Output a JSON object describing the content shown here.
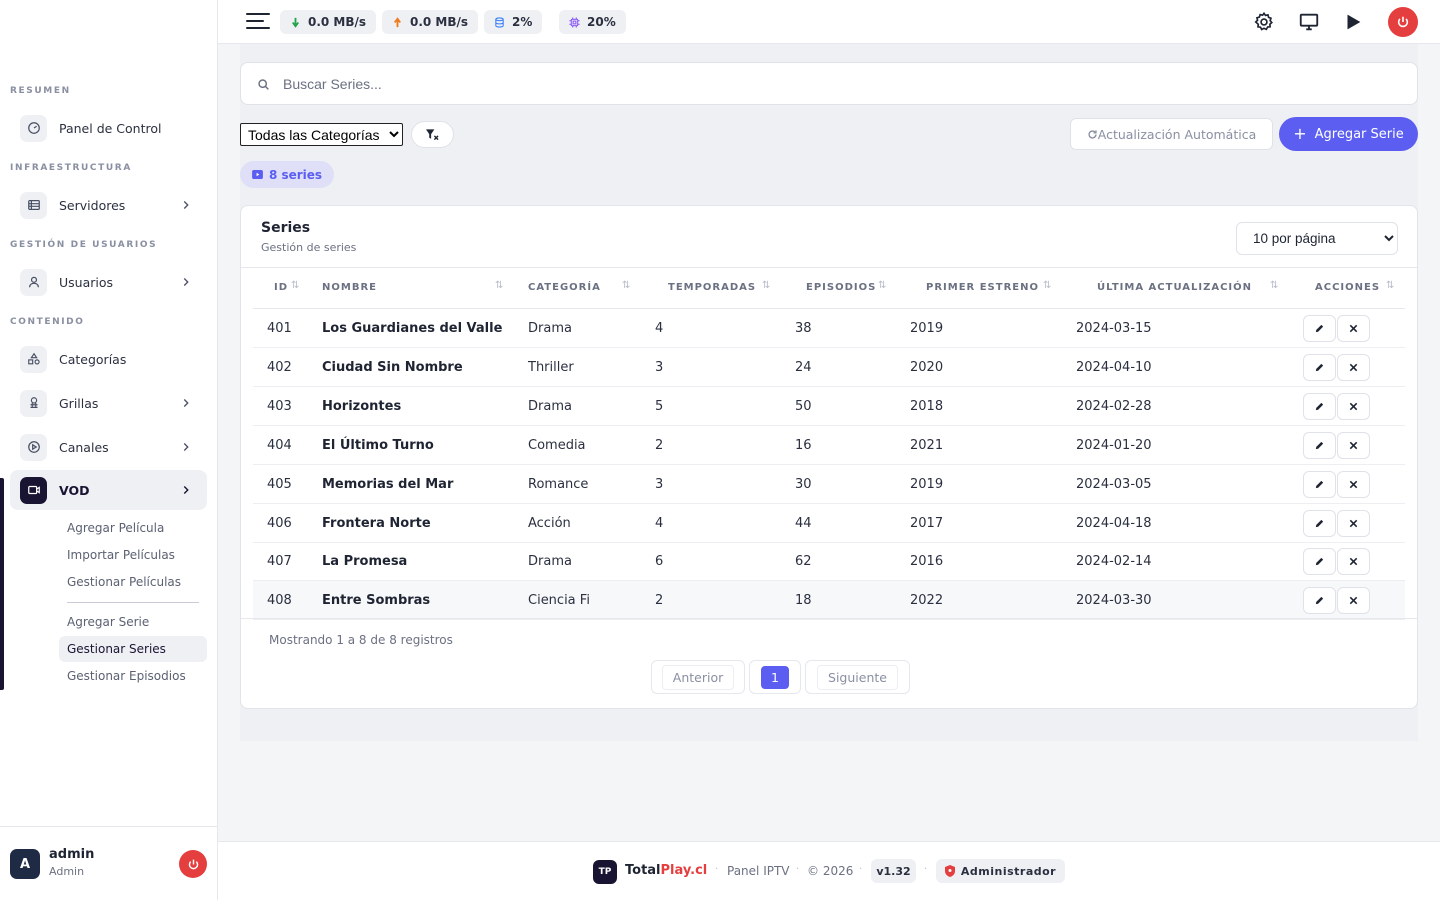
{
  "sidebar": {
    "sections": [
      "RESUMEN",
      "INFRAESTRUCTURA",
      "GESTIÓN DE USUARIOS",
      "CONTENIDO"
    ],
    "items": [
      {
        "label": "Panel de Control",
        "icon": "dashboard-icon"
      },
      {
        "label": "Servidores",
        "icon": "server-icon"
      },
      {
        "label": "Usuarios",
        "icon": "user-icon"
      },
      {
        "label": "Categorías",
        "icon": "shapes-icon"
      },
      {
        "label": "Grillas",
        "icon": "grid-icon"
      },
      {
        "label": "Canales",
        "icon": "play-circle-icon"
      },
      {
        "label": "VOD",
        "icon": "video-icon"
      }
    ],
    "vod_sub": [
      "Agregar Película",
      "Importar Películas",
      "Gestionar Películas",
      "Agregar Serie",
      "Gestionar Series",
      "Gestionar Episodios"
    ],
    "user": {
      "initial": "A",
      "name": "admin",
      "role": "Admin"
    }
  },
  "topbar": {
    "download": "0.0 MB/s",
    "upload": "0.0 MB/s",
    "disk": "2%",
    "cpu": "20%"
  },
  "search": {
    "placeholder": "Buscar Series..."
  },
  "filters": {
    "category_selected": "Todas las Categorías",
    "auto_refresh_label": "Actualización Automática",
    "add_label": "Agregar Serie",
    "count_label": "8 series"
  },
  "card": {
    "title": "Series",
    "subtitle": "Gestión de series",
    "per_page": "10 por página"
  },
  "table": {
    "headers": [
      "ID",
      "NOMBRE",
      "CATEGORÍA",
      "TEMPORADAS",
      "EPISODIOS",
      "PRIMER ESTRENO",
      "ÚLTIMA ACTUALIZACIÓN",
      "ACCIONES"
    ],
    "rows": [
      {
        "id": "401",
        "name": "Los Guardianes del Valle",
        "category": "Drama",
        "seasons": "4",
        "episodes": "38",
        "premiere": "2019",
        "updated": "2024-03-15"
      },
      {
        "id": "402",
        "name": "Ciudad Sin Nombre",
        "category": "Thriller",
        "seasons": "3",
        "episodes": "24",
        "premiere": "2020",
        "updated": "2024-04-10"
      },
      {
        "id": "403",
        "name": "Horizontes",
        "category": "Drama",
        "seasons": "5",
        "episodes": "50",
        "premiere": "2018",
        "updated": "2024-02-28"
      },
      {
        "id": "404",
        "name": "El Último Turno",
        "category": "Comedia",
        "seasons": "2",
        "episodes": "16",
        "premiere": "2021",
        "updated": "2024-01-20"
      },
      {
        "id": "405",
        "name": "Memorias del Mar",
        "category": "Romance",
        "seasons": "3",
        "episodes": "30",
        "premiere": "2019",
        "updated": "2024-03-05"
      },
      {
        "id": "406",
        "name": "Frontera Norte",
        "category": "Acción",
        "seasons": "4",
        "episodes": "44",
        "premiere": "2017",
        "updated": "2024-04-18"
      },
      {
        "id": "407",
        "name": "La Promesa",
        "category": "Drama",
        "seasons": "6",
        "episodes": "62",
        "premiere": "2016",
        "updated": "2024-02-14"
      },
      {
        "id": "408",
        "name": "Entre Sombras",
        "category": "Ciencia Fi",
        "seasons": "2",
        "episodes": "18",
        "premiere": "2022",
        "updated": "2024-03-30"
      }
    ]
  },
  "pagination": {
    "showing": "Mostrando 1 a 8 de 8 registros",
    "prev": "Anterior",
    "current": "1",
    "next": "Siguiente"
  },
  "footer": {
    "logo": "TP",
    "brand_a": "Total",
    "brand_b": "Play.cl",
    "product": "Panel IPTV",
    "copyright": "© 2026",
    "version": "v1.32",
    "role": "Administrador"
  },
  "colors": {
    "accent": "#5b5ef0",
    "danger": "#e53e3e",
    "dark": "#1a1433"
  }
}
